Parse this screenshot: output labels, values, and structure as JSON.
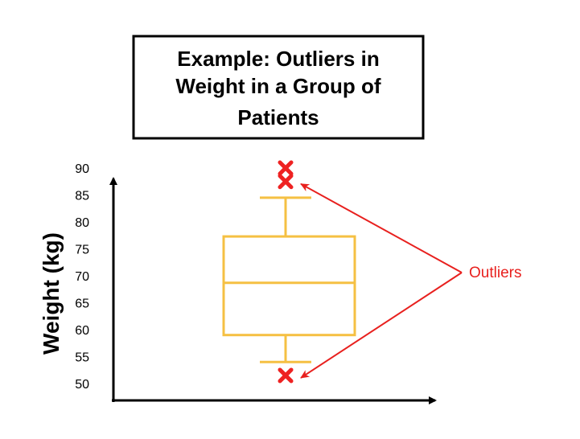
{
  "chart_data": {
    "type": "box",
    "title_lines": [
      "Example: Outliers in",
      "Weight in a Group of",
      "Patients"
    ],
    "ylabel": "Weight (kg)",
    "xlabel": "",
    "ylim": [
      48,
      95
    ],
    "yticks": [
      90,
      85,
      80,
      75,
      70,
      65,
      60,
      55,
      50
    ],
    "box": {
      "whisker_low": 54,
      "q1": 59,
      "median": 68.7,
      "q3": 77.3,
      "whisker_high": 84.5
    },
    "outliers": [
      90,
      87.5,
      51.5
    ],
    "annotation": {
      "text": "Outliers",
      "arrows_to": [
        87.5,
        51.5
      ]
    },
    "colors": {
      "box": "#F5C043",
      "outlier": "#EE2222",
      "annotation": "#E8201E",
      "axis": "#000000"
    }
  }
}
